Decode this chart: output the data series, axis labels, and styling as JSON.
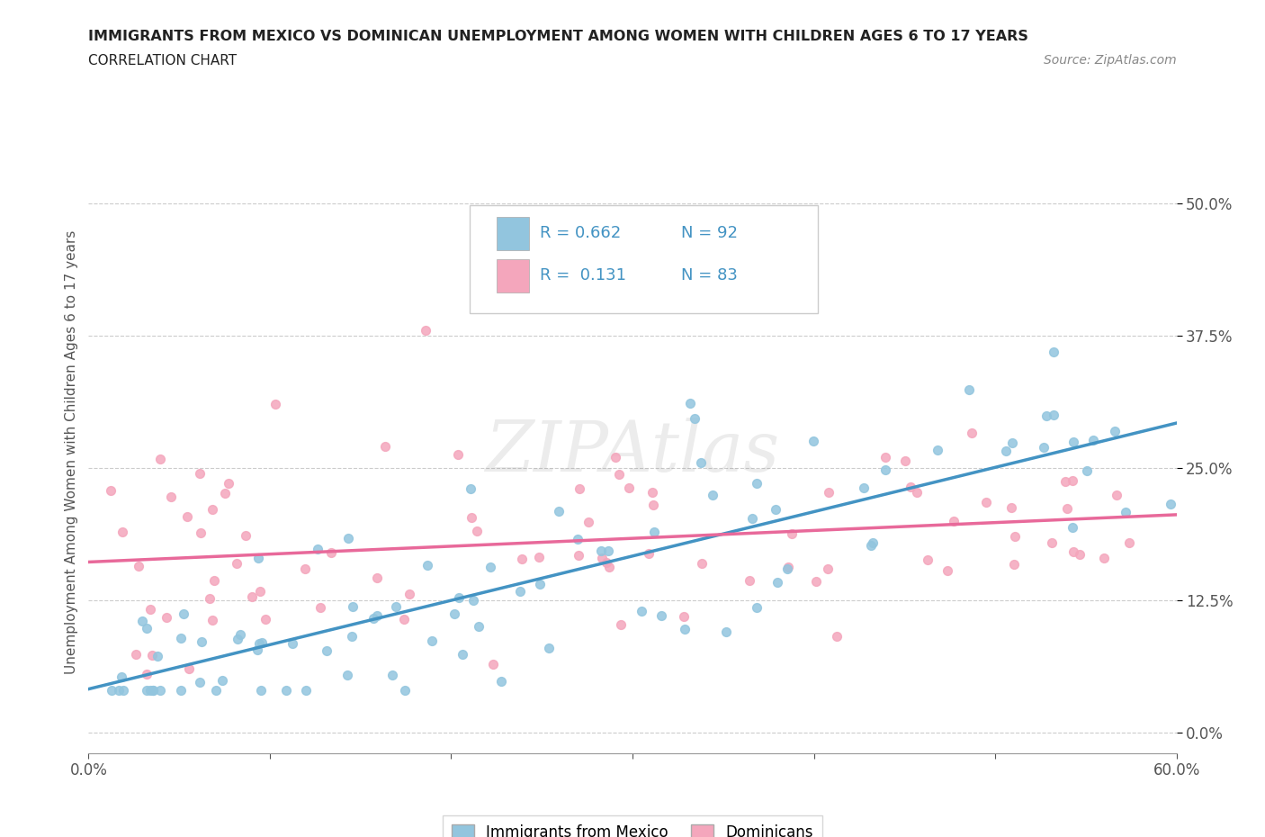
{
  "title": "IMMIGRANTS FROM MEXICO VS DOMINICAN UNEMPLOYMENT AMONG WOMEN WITH CHILDREN AGES 6 TO 17 YEARS",
  "subtitle": "CORRELATION CHART",
  "source": "Source: ZipAtlas.com",
  "ylabel": "Unemployment Among Women with Children Ages 6 to 17 years",
  "xlim": [
    0.0,
    0.6
  ],
  "ylim": [
    -0.02,
    0.55
  ],
  "xticks": [
    0.0,
    0.1,
    0.2,
    0.3,
    0.4,
    0.5,
    0.6
  ],
  "yticks": [
    0.0,
    0.125,
    0.25,
    0.375,
    0.5
  ],
  "ytick_labels": [
    "0.0%",
    "12.5%",
    "25.0%",
    "37.5%",
    "50.0%"
  ],
  "xtick_labels": [
    "0.0%",
    "",
    "",
    "",
    "",
    "",
    "60.0%"
  ],
  "color_mexico": "#92c5de",
  "color_dominican": "#f4a6bc",
  "color_mexico_line": "#4393c3",
  "color_dominican_line": "#e8699a",
  "R_mexico": 0.662,
  "N_mexico": 92,
  "R_dominican": 0.131,
  "N_dominican": 83,
  "legend_label_mexico": "Immigrants from Mexico",
  "legend_label_dominican": "Dominicans",
  "mexico_trendline_x0": 0.0,
  "mexico_trendline_y0": 0.04,
  "mexico_trendline_x1": 0.6,
  "mexico_trendline_y1": 0.285,
  "dominican_trendline_x0": 0.0,
  "dominican_trendline_y0": 0.135,
  "dominican_trendline_x1": 0.6,
  "dominican_trendline_y1": 0.2
}
